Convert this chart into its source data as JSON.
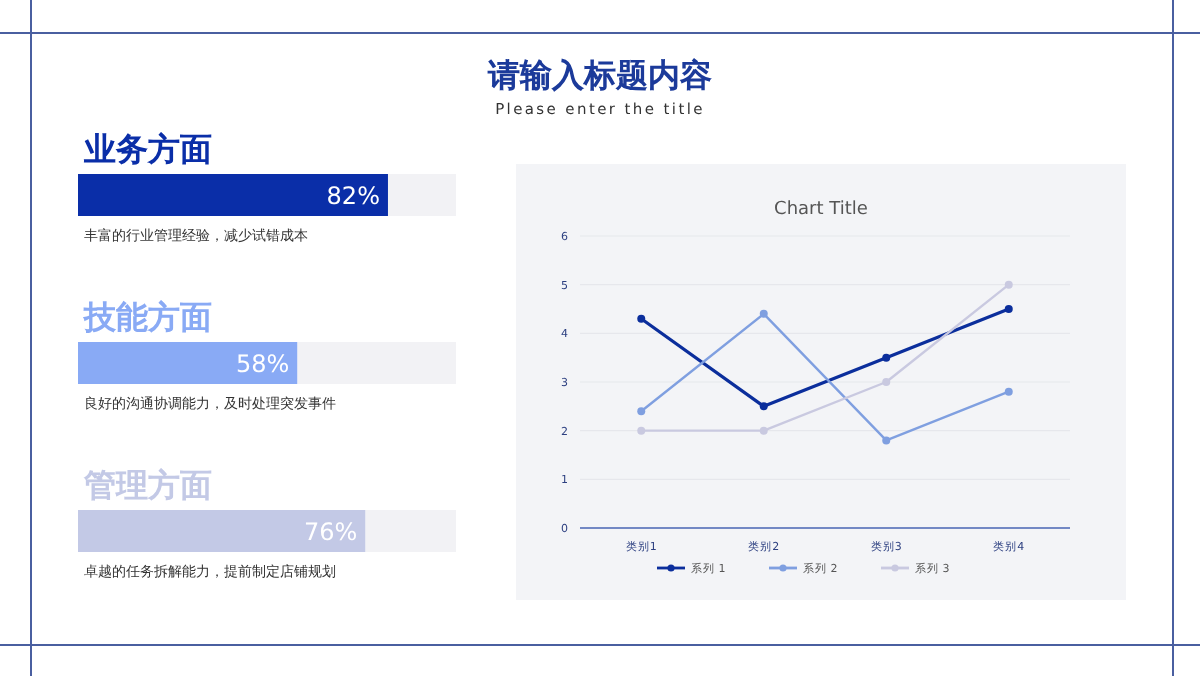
{
  "chart_data": [
    {
      "type": "other",
      "title": "请输入标题内容",
      "subtitle": "Please enter the title"
    },
    {
      "type": "bar",
      "orientation": "horizontal",
      "categories": [
        "业务方面",
        "技能方面",
        "管理方面"
      ],
      "values": [
        82,
        58,
        76
      ],
      "value_labels": [
        "82%",
        "58%",
        "76%"
      ],
      "colors": [
        "#0a2ea8",
        "#89aaf5",
        "#c3c9e6"
      ],
      "xlim": [
        0,
        100
      ],
      "tick_labels": "y",
      "annotations": [
        "丰富的行业管理经验，减少试错成本",
        "良好的沟通协调能力，及时处理突发事件",
        "卓越的任务拆解能力，提前制定店铺规划"
      ]
    },
    {
      "type": "line",
      "title": "Chart Title",
      "categories": [
        "类别1",
        "类别2",
        "类别3",
        "类别4"
      ],
      "ylim": [
        0,
        6
      ],
      "yticks": [
        0,
        1,
        2,
        3,
        4,
        5,
        6
      ],
      "grid": "y",
      "legend": "bottom",
      "marker": "circle",
      "series": [
        {
          "name": "系列 1",
          "color": "#0b2e9c",
          "values": [
            4.3,
            2.5,
            3.5,
            4.5
          ]
        },
        {
          "name": "系列 2",
          "color": "#7f9fe0",
          "values": [
            2.4,
            4.4,
            1.8,
            2.8
          ]
        },
        {
          "name": "系列 3",
          "color": "#c9c9e0",
          "values": [
            2,
            2,
            3,
            5
          ]
        }
      ]
    }
  ]
}
